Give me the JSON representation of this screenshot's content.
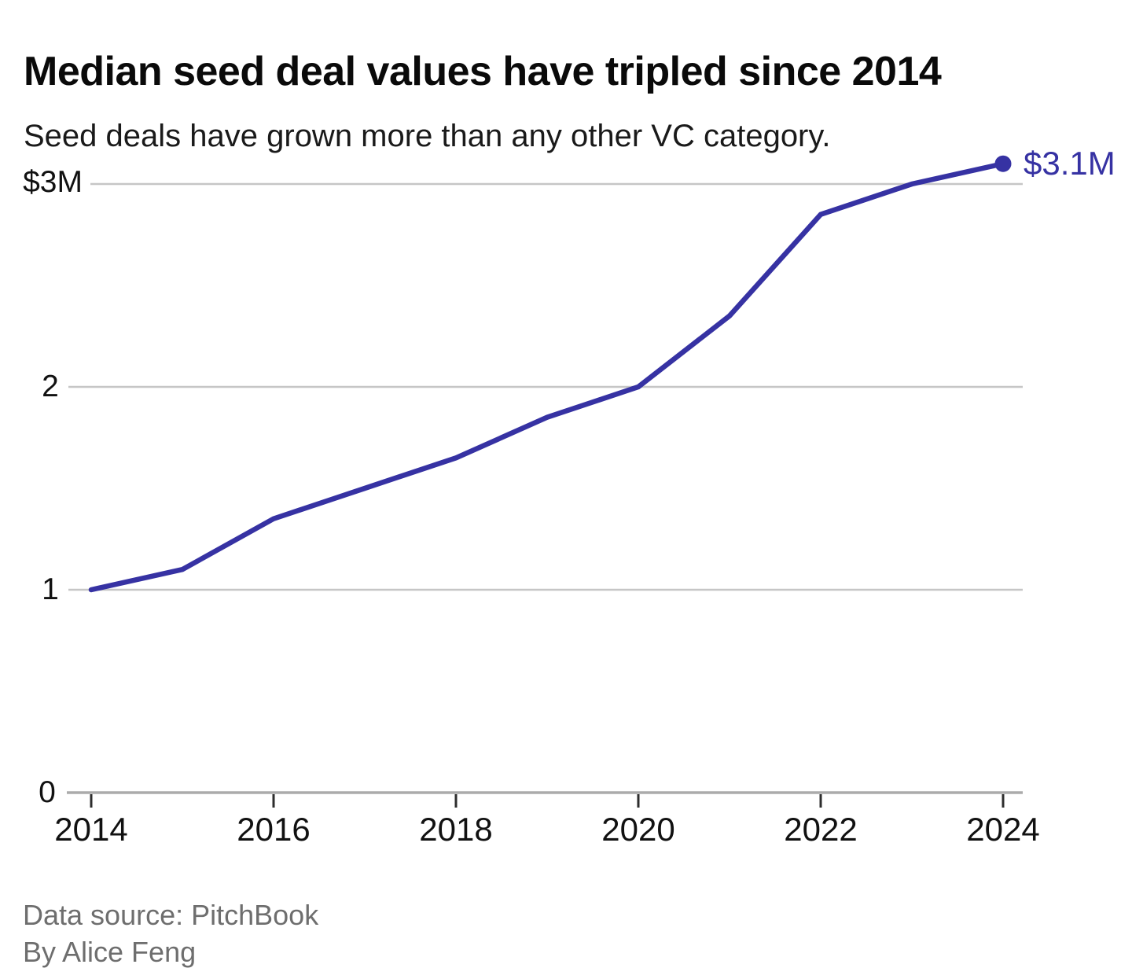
{
  "chart_data": {
    "type": "line",
    "title": "Median seed deal values have tripled since 2014",
    "subtitle": "Seed deals have grown more than any other VC category.",
    "x": [
      2014,
      2015,
      2016,
      2017,
      2018,
      2019,
      2020,
      2021,
      2022,
      2023,
      2024
    ],
    "values": [
      1.0,
      1.1,
      1.35,
      1.5,
      1.65,
      1.85,
      2.0,
      2.35,
      2.85,
      3.0,
      3.1
    ],
    "units": "$M",
    "ylim": [
      0,
      3.2
    ],
    "xlim": [
      2014,
      2024
    ],
    "grid": true,
    "legend": "none",
    "x_tick_labels": [
      "2014",
      "2016",
      "2018",
      "2020",
      "2022",
      "2024"
    ],
    "y_tick_labels": [
      "0",
      "1",
      "2",
      "$3M"
    ],
    "end_label": "$3.1M",
    "colors": {
      "line": "#3632a3",
      "grid": "#c6c6c6",
      "axis": "#ababab",
      "tick": "#2d2d2d",
      "title": "#0a0a0a",
      "footer": "#6e6e6e"
    }
  },
  "footer": {
    "source": "Data source: PitchBook",
    "byline": "By Alice Feng"
  }
}
